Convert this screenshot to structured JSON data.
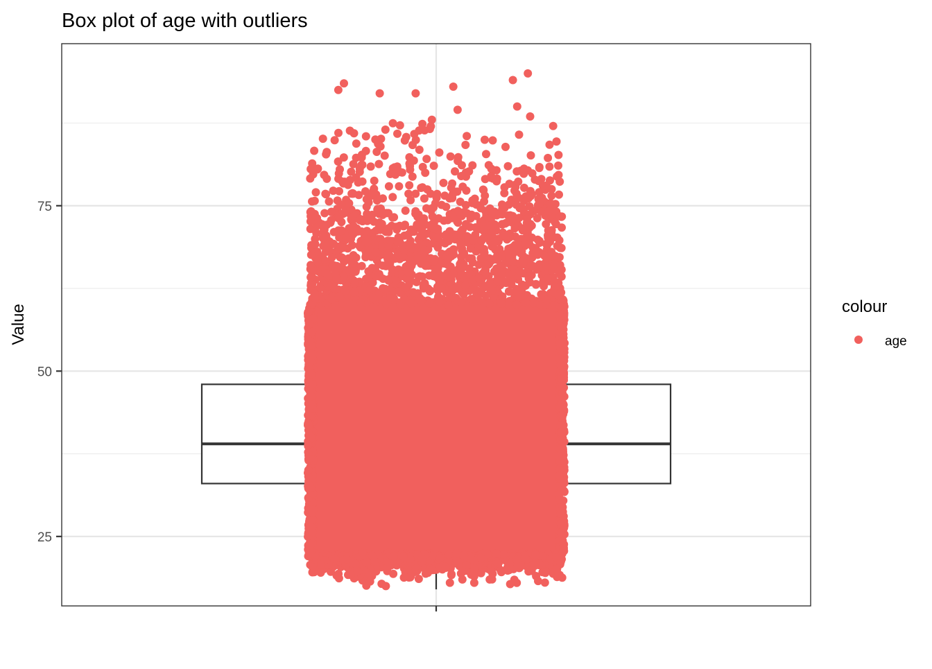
{
  "chart_data": {
    "type": "box",
    "title": "Box plot of age with outliers",
    "xlabel": "",
    "ylabel": "Value",
    "ylim": [
      14.5,
      99.5
    ],
    "yticks": [
      25,
      50,
      75
    ],
    "grid": true,
    "legend": {
      "title": "colour",
      "placement": "right",
      "entries": [
        {
          "label": "age",
          "color": "#F8766D"
        }
      ]
    },
    "series": [
      {
        "name": "age",
        "box": {
          "q1": 33,
          "median": 39,
          "q3": 48,
          "whisker_low": 17,
          "whisker_high": 65
        },
        "points": {
          "count_estimate": 4000,
          "min": 17.5,
          "max": 95,
          "dense_range": [
            22,
            61
          ],
          "upper_outlier_examples": [
            92.5,
            92,
            93,
            88,
            95,
            94,
            93.5,
            92,
            90,
            89.5,
            88.5,
            87,
            86.5,
            86,
            85.5,
            85
          ],
          "lower_extreme_examples": [
            17.5,
            17.8,
            18,
            18.2,
            18.5,
            18.8,
            19
          ]
        }
      }
    ],
    "point_color": "#F1605D"
  }
}
